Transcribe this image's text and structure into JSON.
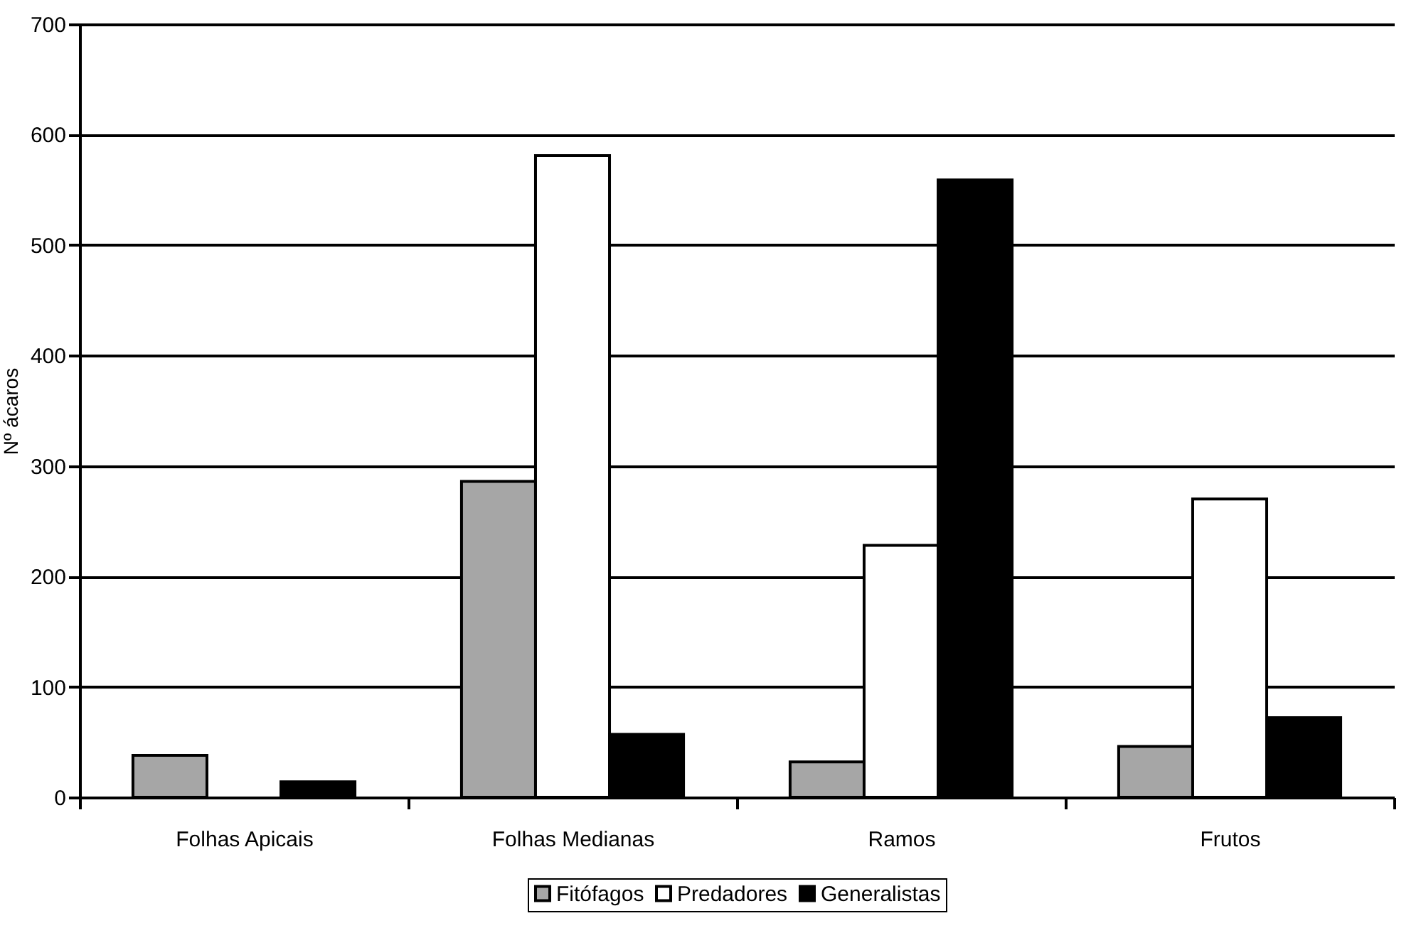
{
  "chart_data": {
    "type": "bar",
    "ylabel": "Nº ácaros",
    "categories": [
      "Folhas Apicais",
      "Folhas Medianas",
      "Ramos",
      "Frutos"
    ],
    "series": [
      {
        "name": "Fitófagos",
        "color": "#a6a6a6",
        "values": [
          38,
          286,
          32,
          46
        ]
      },
      {
        "name": "Predadores",
        "color": "#ffffff",
        "values": [
          null,
          581,
          228,
          270
        ]
      },
      {
        "name": "Generalistas",
        "color": "#000000",
        "values": [
          14,
          57,
          559,
          72
        ]
      }
    ],
    "ylim": [
      0,
      700
    ],
    "yticks": [
      0,
      100,
      200,
      300,
      400,
      500,
      600,
      700
    ],
    "grid": "y",
    "legend": "bottom"
  }
}
